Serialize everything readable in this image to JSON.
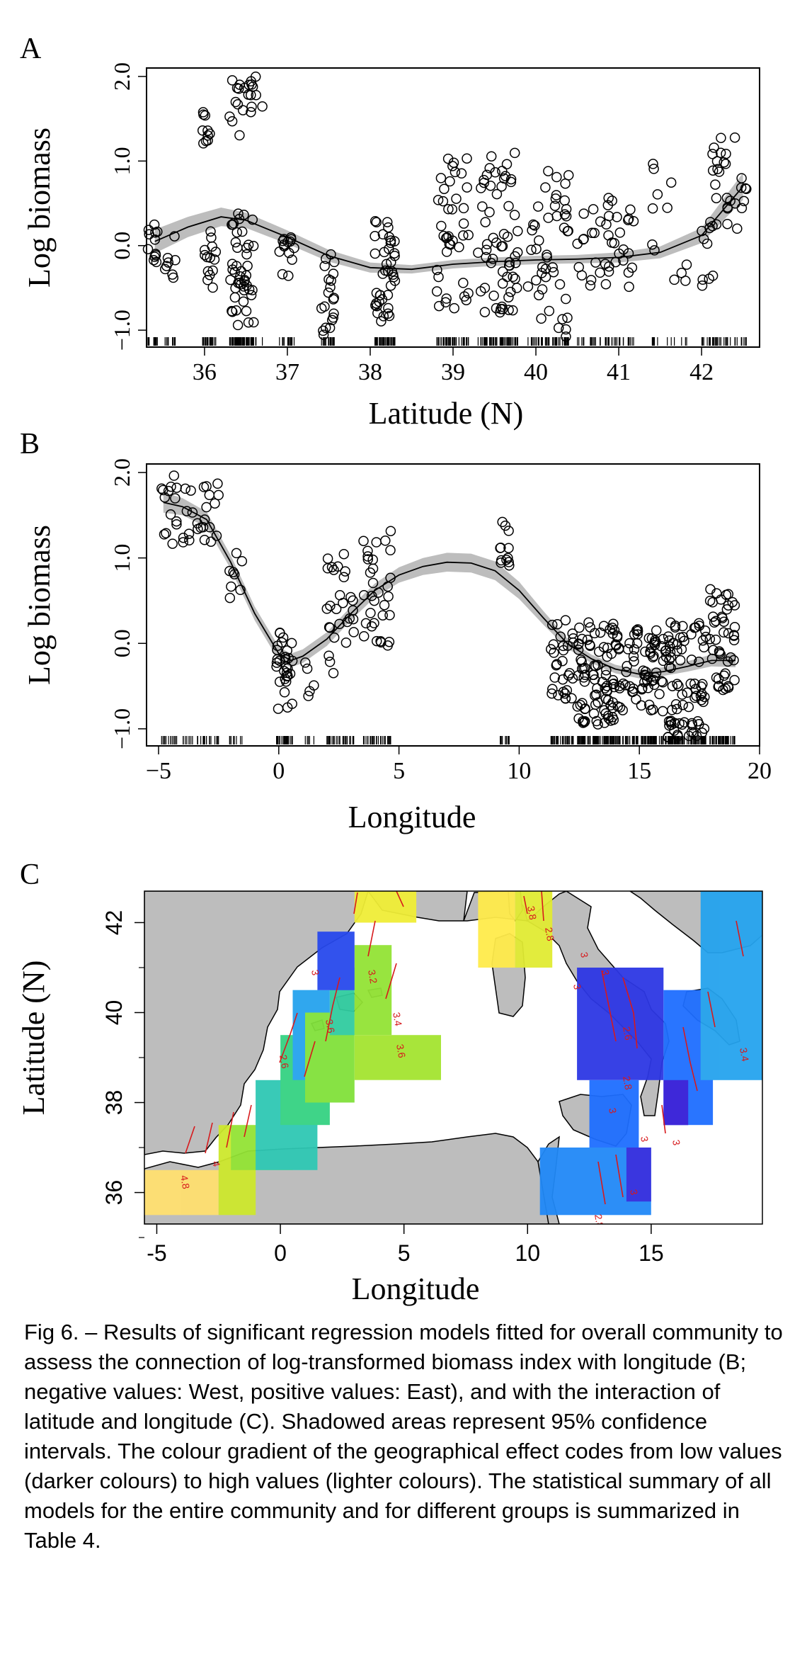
{
  "panel_letters": [
    "A",
    "B",
    "C"
  ],
  "caption": "Fig 6. – Results of significant regression models fitted for overall community to assess the connection of log-transformed biomass index with longitude (B; negative values: West, positive values: East), and with the interaction of latitude and longitude (C). Shadowed areas represent 95% confidence intervals. The colour gradient of the geographical effect codes from low values (darker colours) to high values (lighter colours). The statistical summary of all models for the entire community and for different groups is summarized in Table 4.",
  "colors": {
    "points": "#000000",
    "ci_band": "#bdbdbd",
    "land": "#bdbdbd",
    "contours": "#d7191c"
  },
  "chart_data": [
    {
      "panel": "A",
      "type": "scatter",
      "xlabel": "Latitude (N)",
      "ylabel": "Log biomass",
      "xlim": [
        35.3,
        42.7
      ],
      "ylim": [
        -1.2,
        2.1
      ],
      "xticks": [
        "36",
        "37",
        "38",
        "39",
        "40",
        "41",
        "42"
      ],
      "yticks": [
        "−1.0",
        "0.0",
        "1.0",
        "2.0"
      ],
      "ytick_values": [
        -1.0,
        0.0,
        1.0,
        2.0
      ],
      "smooth_fit": {
        "x": [
          35.4,
          35.8,
          36.2,
          36.5,
          37.0,
          37.5,
          38.0,
          38.5,
          39.0,
          39.5,
          40.0,
          40.5,
          41.0,
          41.5,
          42.0,
          42.5
        ],
        "y": [
          0.05,
          0.22,
          0.34,
          0.3,
          0.1,
          -0.12,
          -0.26,
          -0.28,
          -0.22,
          -0.19,
          -0.17,
          -0.16,
          -0.14,
          -0.08,
          0.12,
          0.7
        ],
        "ci_halfwidth": [
          0.14,
          0.12,
          0.11,
          0.09,
          0.08,
          0.07,
          0.06,
          0.05,
          0.05,
          0.05,
          0.05,
          0.05,
          0.06,
          0.07,
          0.09,
          0.16
        ]
      },
      "clusters": [
        {
          "x": [
            35.3,
            35.45
          ],
          "y": [
            -0.3,
            0.25
          ],
          "n": 12
        },
        {
          "x": [
            35.5,
            35.65
          ],
          "y": [
            -0.5,
            0.2
          ],
          "n": 8
        },
        {
          "x": [
            35.9,
            36.1
          ],
          "y": [
            1.2,
            1.6
          ],
          "n": 10
        },
        {
          "x": [
            36.0,
            36.15
          ],
          "y": [
            -0.5,
            0.2
          ],
          "n": 14
        },
        {
          "x": [
            36.3,
            36.7
          ],
          "y": [
            1.3,
            2.0
          ],
          "n": 22
        },
        {
          "x": [
            36.3,
            36.6
          ],
          "y": [
            -0.95,
            0.4
          ],
          "n": 45
        },
        {
          "x": [
            36.9,
            37.1
          ],
          "y": [
            -0.4,
            0.1
          ],
          "n": 14
        },
        {
          "x": [
            37.4,
            37.6
          ],
          "y": [
            -1.1,
            0.0
          ],
          "n": 20
        },
        {
          "x": [
            38.05,
            38.3
          ],
          "y": [
            -0.9,
            0.3
          ],
          "n": 40
        },
        {
          "x": [
            38.8,
            39.2
          ],
          "y": [
            -0.8,
            1.1
          ],
          "n": 40
        },
        {
          "x": [
            39.3,
            39.8
          ],
          "y": [
            -0.8,
            1.1
          ],
          "n": 60
        },
        {
          "x": [
            39.9,
            40.4
          ],
          "y": [
            -1.1,
            0.9
          ],
          "n": 45
        },
        {
          "x": [
            40.5,
            41.2
          ],
          "y": [
            -0.5,
            0.6
          ],
          "n": 40
        },
        {
          "x": [
            41.4,
            41.8
          ],
          "y": [
            -0.5,
            1.1
          ],
          "n": 10
        },
        {
          "x": [
            41.8,
            42.2
          ],
          "y": [
            -0.5,
            0.3
          ],
          "n": 10
        },
        {
          "x": [
            42.1,
            42.55
          ],
          "y": [
            0.2,
            1.4
          ],
          "n": 30
        }
      ]
    },
    {
      "panel": "B",
      "type": "scatter",
      "xlabel": "Longitude",
      "ylabel": "Log biomass",
      "xlim": [
        -5.5,
        20.0
      ],
      "ylim": [
        -1.2,
        2.1
      ],
      "xticks": [
        "−5",
        "0",
        "5",
        "10",
        "15",
        "20"
      ],
      "xtick_values": [
        -5,
        0,
        5,
        10,
        15,
        20
      ],
      "yticks": [
        "−1.0",
        "0.0",
        "1.0",
        "2.0"
      ],
      "ytick_values": [
        -1.0,
        0.0,
        1.0,
        2.0
      ],
      "smooth_fit": {
        "x": [
          -4.8,
          -4.0,
          -3.0,
          -2.0,
          -1.0,
          0.0,
          0.5,
          1.0,
          2.0,
          3.0,
          4.0,
          5.0,
          6.0,
          7.0,
          8.0,
          9.0,
          10.0,
          11.0,
          12.0,
          13.0,
          14.0,
          15.0,
          16.0,
          17.0,
          18.0,
          19.0
        ],
        "y": [
          1.65,
          1.6,
          1.45,
          0.95,
          0.35,
          -0.12,
          -0.2,
          -0.15,
          0.05,
          0.35,
          0.62,
          0.8,
          0.9,
          0.95,
          0.94,
          0.85,
          0.62,
          0.3,
          0.0,
          -0.18,
          -0.3,
          -0.36,
          -0.33,
          -0.27,
          -0.2,
          -0.2
        ],
        "ci_halfwidth": [
          0.12,
          0.1,
          0.09,
          0.08,
          0.08,
          0.08,
          0.08,
          0.08,
          0.08,
          0.08,
          0.08,
          0.09,
          0.1,
          0.11,
          0.11,
          0.11,
          0.1,
          0.08,
          0.06,
          0.05,
          0.05,
          0.05,
          0.05,
          0.06,
          0.07,
          0.08
        ]
      },
      "clusters": [
        {
          "x": [
            -4.9,
            -4.2
          ],
          "y": [
            1.15,
            2.0
          ],
          "n": 14
        },
        {
          "x": [
            -4.0,
            -2.5
          ],
          "y": [
            1.15,
            1.9
          ],
          "n": 24
        },
        {
          "x": [
            -2.4,
            -1.5
          ],
          "y": [
            0.4,
            1.1
          ],
          "n": 8
        },
        {
          "x": [
            -0.1,
            0.6
          ],
          "y": [
            -0.8,
            0.15
          ],
          "n": 30
        },
        {
          "x": [
            1.0,
            1.5
          ],
          "y": [
            -0.65,
            -0.2
          ],
          "n": 5
        },
        {
          "x": [
            2.0,
            3.2
          ],
          "y": [
            -0.35,
            1.1
          ],
          "n": 28
        },
        {
          "x": [
            3.3,
            4.7
          ],
          "y": [
            -0.1,
            1.4
          ],
          "n": 32
        },
        {
          "x": [
            9.2,
            9.6
          ],
          "y": [
            0.75,
            1.45
          ],
          "n": 12
        },
        {
          "x": [
            11.3,
            12.3
          ],
          "y": [
            -0.65,
            0.3
          ],
          "n": 30
        },
        {
          "x": [
            12.4,
            14.2
          ],
          "y": [
            -0.95,
            0.25
          ],
          "n": 90
        },
        {
          "x": [
            14.3,
            16.0
          ],
          "y": [
            -0.8,
            0.25
          ],
          "n": 60
        },
        {
          "x": [
            16.0,
            17.8
          ],
          "y": [
            -1.1,
            0.25
          ],
          "n": 80
        },
        {
          "x": [
            17.9,
            19.0
          ],
          "y": [
            -0.55,
            0.65
          ],
          "n": 45
        }
      ]
    },
    {
      "panel": "C",
      "type": "heatmap",
      "xlabel": "Longitude",
      "ylabel": "Latitude (N)",
      "xlim": [
        -5.5,
        19.5
      ],
      "ylim": [
        35.3,
        42.7
      ],
      "xticks": [
        "-5",
        "0",
        "5",
        "10",
        "15"
      ],
      "xtick_values": [
        -5,
        0,
        5,
        10,
        15
      ],
      "yticks": [
        "36",
        "38",
        "40",
        "42"
      ],
      "ytick_values": [
        36,
        38,
        40,
        42
      ],
      "contour_labels": [
        "4.8",
        "4",
        "3.6",
        "3.2",
        "3",
        "3.4",
        "3.6",
        "3",
        "2.8",
        "3.8",
        "3",
        "3",
        "2.6",
        "2.8",
        "3",
        "3",
        "3",
        "2.8",
        "3",
        "3.4",
        "2.6"
      ],
      "cells": [
        {
          "lon": [
            -5.5,
            -2.5
          ],
          "lat": [
            35.5,
            36.5
          ],
          "v": 0.95
        },
        {
          "lon": [
            -2.5,
            -1.0
          ],
          "lat": [
            35.5,
            37.5
          ],
          "v": 0.78
        },
        {
          "lon": [
            -2.0,
            0.5
          ],
          "lat": [
            36.5,
            37.5
          ],
          "v": 0.7
        },
        {
          "lon": [
            -1.0,
            1.5
          ],
          "lat": [
            36.5,
            38.5
          ],
          "v": 0.5
        },
        {
          "lon": [
            0.0,
            2.0
          ],
          "lat": [
            37.5,
            39.5
          ],
          "v": 0.55
        },
        {
          "lon": [
            0.5,
            2.0
          ],
          "lat": [
            38.5,
            40.5
          ],
          "v": 0.4
        },
        {
          "lon": [
            1.0,
            3.0
          ],
          "lat": [
            38.0,
            40.0
          ],
          "v": 0.68
        },
        {
          "lon": [
            2.0,
            3.0
          ],
          "lat": [
            39.5,
            41.0
          ],
          "v": 0.52
        },
        {
          "lon": [
            3.0,
            6.5
          ],
          "lat": [
            38.5,
            39.5
          ],
          "v": 0.72
        },
        {
          "lon": [
            3.0,
            4.5
          ],
          "lat": [
            39.5,
            41.5
          ],
          "v": 0.7
        },
        {
          "lon": [
            1.5,
            3.0
          ],
          "lat": [
            40.5,
            41.8
          ],
          "v": 0.2
        },
        {
          "lon": [
            3.0,
            5.5
          ],
          "lat": [
            42.0,
            42.7
          ],
          "v": 0.85
        },
        {
          "lon": [
            8.0,
            9.5
          ],
          "lat": [
            41.0,
            42.7
          ],
          "v": 0.9
        },
        {
          "lon": [
            9.5,
            11.0
          ],
          "lat": [
            41.0,
            42.7
          ],
          "v": 0.82
        },
        {
          "lon": [
            12.0,
            15.5
          ],
          "lat": [
            38.5,
            41.0
          ],
          "v": 0.15
        },
        {
          "lon": [
            12.5,
            14.5
          ],
          "lat": [
            37.0,
            38.5
          ],
          "v": 0.3
        },
        {
          "lon": [
            10.5,
            15.0
          ],
          "lat": [
            35.5,
            37.0
          ],
          "v": 0.35
        },
        {
          "lon": [
            14.0,
            15.0
          ],
          "lat": [
            35.8,
            37.0
          ],
          "v": 0.12
        },
        {
          "lon": [
            15.5,
            17.5
          ],
          "lat": [
            37.5,
            40.5
          ],
          "v": 0.3
        },
        {
          "lon": [
            15.5,
            16.5
          ],
          "lat": [
            37.5,
            38.5
          ],
          "v": 0.08
        },
        {
          "lon": [
            17.0,
            19.5
          ],
          "lat": [
            38.5,
            42.7
          ],
          "v": 0.4
        }
      ]
    }
  ]
}
